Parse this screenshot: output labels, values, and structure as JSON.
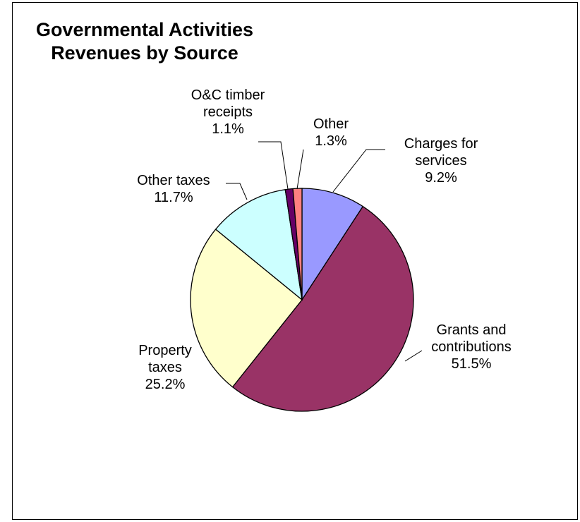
{
  "chart_data": {
    "type": "pie",
    "title_lines": [
      "Governmental Activities",
      "Revenues by Source"
    ],
    "start_angle_deg": 0,
    "direction": "clockwise",
    "legend": "none",
    "slices": [
      {
        "label_lines": [
          "Charges for",
          "services"
        ],
        "value": 9.2,
        "value_label": "9.2%",
        "color": "#9999ff"
      },
      {
        "label_lines": [
          "Grants and",
          "contributions"
        ],
        "value": 51.5,
        "value_label": "51.5%",
        "color": "#993366"
      },
      {
        "label_lines": [
          "Property",
          "taxes"
        ],
        "value": 25.2,
        "value_label": "25.2%",
        "color": "#ffffcc"
      },
      {
        "label_lines": [
          "Other taxes"
        ],
        "value": 11.7,
        "value_label": "11.7%",
        "color": "#ccffff"
      },
      {
        "label_lines": [
          "O&C timber",
          "receipts"
        ],
        "value": 1.1,
        "value_label": "1.1%",
        "color": "#660066"
      },
      {
        "label_lines": [
          "Other"
        ],
        "value": 1.3,
        "value_label": "1.3%",
        "color": "#ff8080"
      }
    ]
  }
}
